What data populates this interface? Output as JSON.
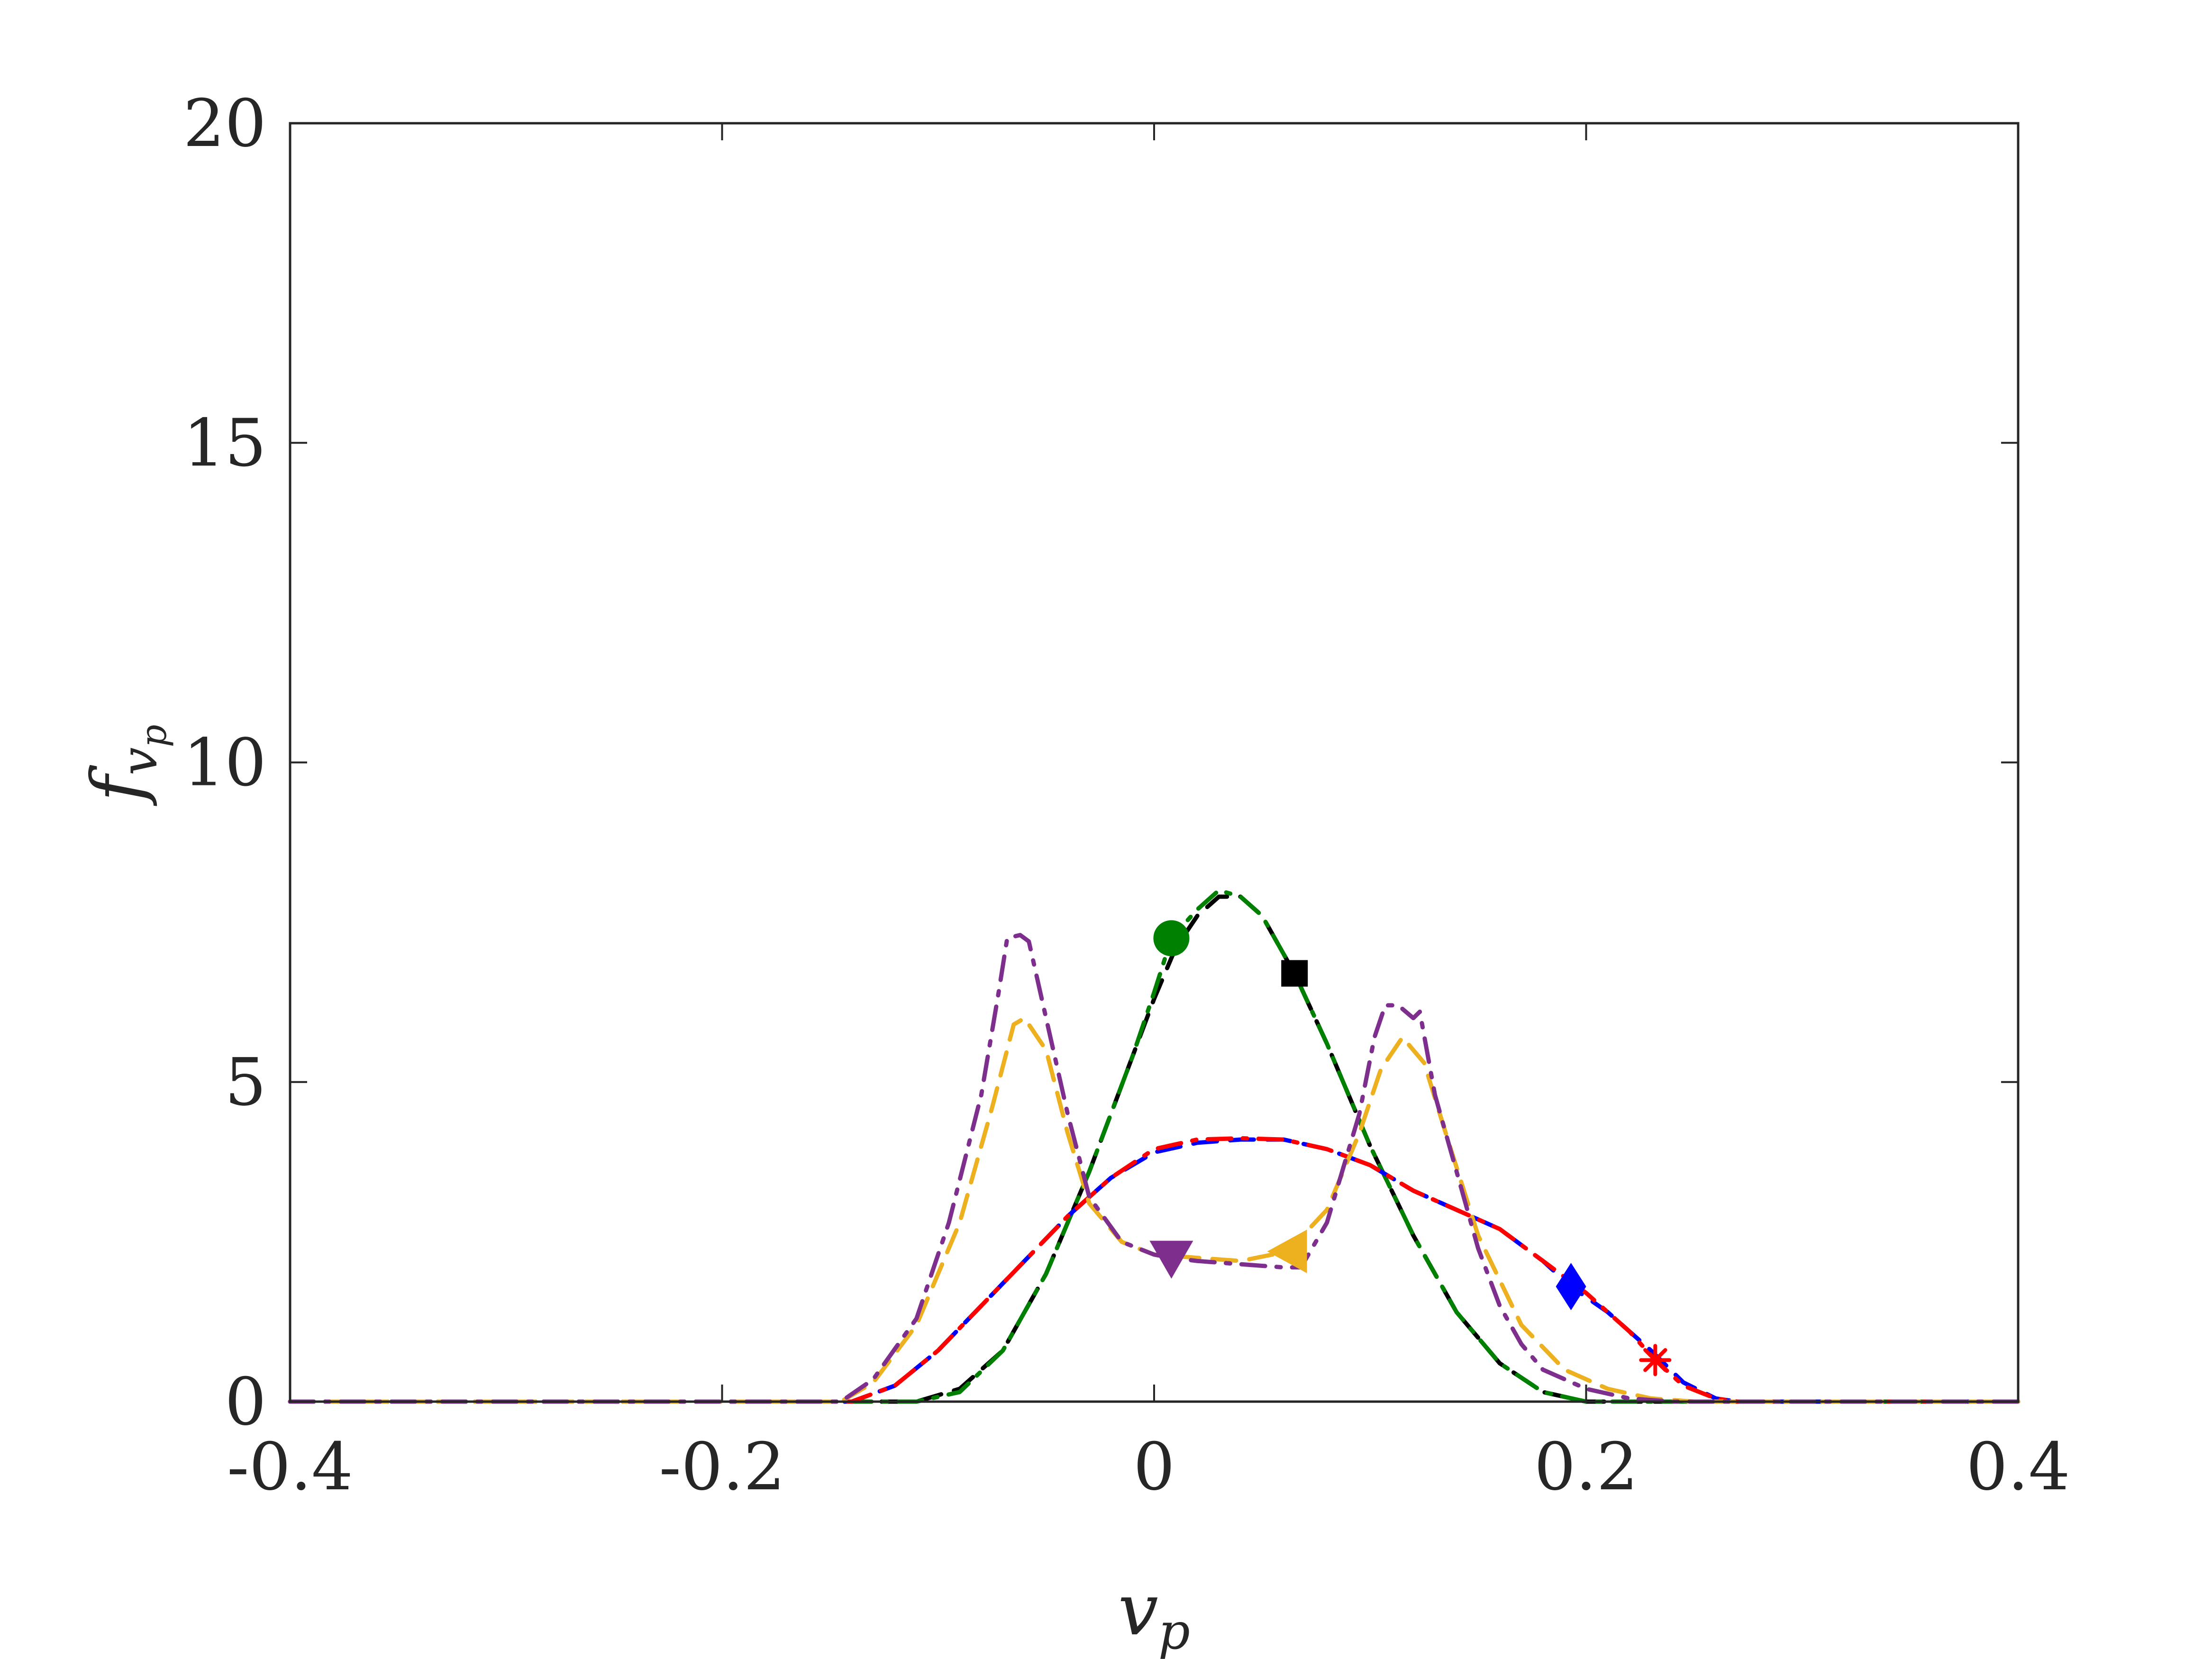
{
  "chart_data": {
    "type": "line",
    "title": "",
    "xlabel": "v",
    "xlabel_sub": "p",
    "ylabel": "f",
    "ylabel_sub": "v",
    "ylabel_subsub": "p",
    "xlim": [
      -0.4,
      0.4
    ],
    "ylim": [
      0,
      20
    ],
    "x_ticks": [
      -0.4,
      -0.2,
      0,
      0.2,
      0.4
    ],
    "x_tick_labels": [
      "-0.4",
      "-0.2",
      "0",
      "0.2",
      "0.4"
    ],
    "y_ticks": [
      0,
      5,
      10,
      15,
      20
    ],
    "y_tick_labels": [
      "0",
      "5",
      "10",
      "15",
      "20"
    ],
    "grid": false,
    "legend": "none",
    "series": [
      {
        "color": "#000000",
        "dash": "dashed",
        "marker": "square",
        "marker_at": [
          0.065,
          6.7
        ],
        "points": [
          [
            -0.4,
            0
          ],
          [
            -0.11,
            0
          ],
          [
            -0.09,
            0.2
          ],
          [
            -0.07,
            0.8
          ],
          [
            -0.05,
            2.0
          ],
          [
            -0.03,
            3.6
          ],
          [
            -0.01,
            5.4
          ],
          [
            0.0,
            6.3
          ],
          [
            0.01,
            7.1
          ],
          [
            0.02,
            7.6
          ],
          [
            0.03,
            7.9
          ],
          [
            0.04,
            7.9
          ],
          [
            0.05,
            7.6
          ],
          [
            0.065,
            6.7
          ],
          [
            0.08,
            5.6
          ],
          [
            0.1,
            4.0
          ],
          [
            0.12,
            2.6
          ],
          [
            0.14,
            1.4
          ],
          [
            0.16,
            0.6
          ],
          [
            0.18,
            0.15
          ],
          [
            0.2,
            0
          ],
          [
            0.4,
            0
          ]
        ]
      },
      {
        "color": "#008000",
        "dash": "dashdot",
        "marker": "circle",
        "marker_at": [
          0.008,
          7.25
        ],
        "points": [
          [
            -0.4,
            0
          ],
          [
            -0.11,
            0
          ],
          [
            -0.09,
            0.15
          ],
          [
            -0.07,
            0.8
          ],
          [
            -0.05,
            2.0
          ],
          [
            -0.03,
            3.6
          ],
          [
            -0.01,
            5.4
          ],
          [
            0.0,
            6.4
          ],
          [
            0.008,
            7.25
          ],
          [
            0.02,
            7.7
          ],
          [
            0.03,
            8.0
          ],
          [
            0.04,
            7.9
          ],
          [
            0.05,
            7.6
          ],
          [
            0.065,
            6.7
          ],
          [
            0.08,
            5.6
          ],
          [
            0.1,
            4.0
          ],
          [
            0.12,
            2.6
          ],
          [
            0.14,
            1.4
          ],
          [
            0.16,
            0.6
          ],
          [
            0.18,
            0.15
          ],
          [
            0.2,
            0
          ],
          [
            0.4,
            0
          ]
        ]
      },
      {
        "color": "#0000ff",
        "dash": "dashed",
        "marker": "diamond",
        "marker_at": [
          0.193,
          1.8
        ],
        "points": [
          [
            -0.4,
            0
          ],
          [
            -0.14,
            0
          ],
          [
            -0.12,
            0.25
          ],
          [
            -0.1,
            0.8
          ],
          [
            -0.08,
            1.5
          ],
          [
            -0.06,
            2.2
          ],
          [
            -0.04,
            2.9
          ],
          [
            -0.02,
            3.5
          ],
          [
            0.0,
            3.9
          ],
          [
            0.02,
            4.05
          ],
          [
            0.04,
            4.1
          ],
          [
            0.06,
            4.1
          ],
          [
            0.08,
            3.95
          ],
          [
            0.1,
            3.7
          ],
          [
            0.12,
            3.3
          ],
          [
            0.14,
            3.0
          ],
          [
            0.16,
            2.7
          ],
          [
            0.18,
            2.2
          ],
          [
            0.193,
            1.8
          ],
          [
            0.21,
            1.4
          ],
          [
            0.23,
            0.8
          ],
          [
            0.245,
            0.3
          ],
          [
            0.26,
            0.05
          ],
          [
            0.27,
            0
          ],
          [
            0.4,
            0
          ]
        ]
      },
      {
        "color": "#ff0000",
        "dash": "dashdot",
        "marker": "asterisk",
        "marker_at": [
          0.232,
          0.65
        ],
        "points": [
          [
            -0.4,
            0
          ],
          [
            -0.14,
            0
          ],
          [
            -0.12,
            0.25
          ],
          [
            -0.1,
            0.8
          ],
          [
            -0.08,
            1.5
          ],
          [
            -0.06,
            2.2
          ],
          [
            -0.04,
            2.9
          ],
          [
            -0.02,
            3.5
          ],
          [
            0.0,
            3.95
          ],
          [
            0.02,
            4.1
          ],
          [
            0.04,
            4.12
          ],
          [
            0.06,
            4.1
          ],
          [
            0.08,
            3.95
          ],
          [
            0.1,
            3.7
          ],
          [
            0.12,
            3.3
          ],
          [
            0.14,
            3.0
          ],
          [
            0.16,
            2.7
          ],
          [
            0.18,
            2.2
          ],
          [
            0.2,
            1.7
          ],
          [
            0.22,
            1.1
          ],
          [
            0.232,
            0.65
          ],
          [
            0.245,
            0.25
          ],
          [
            0.26,
            0.05
          ],
          [
            0.27,
            0
          ],
          [
            0.4,
            0
          ]
        ]
      },
      {
        "color": "#edb120",
        "dash": "dashed",
        "marker": "triangle-left",
        "marker_at": [
          0.062,
          2.35
        ],
        "points": [
          [
            -0.4,
            0
          ],
          [
            -0.145,
            0
          ],
          [
            -0.13,
            0.3
          ],
          [
            -0.11,
            1.2
          ],
          [
            -0.09,
            2.8
          ],
          [
            -0.075,
            4.6
          ],
          [
            -0.065,
            5.9
          ],
          [
            -0.06,
            6.0
          ],
          [
            -0.05,
            5.5
          ],
          [
            -0.04,
            4.2
          ],
          [
            -0.03,
            3.1
          ],
          [
            -0.015,
            2.5
          ],
          [
            0.0,
            2.3
          ],
          [
            0.02,
            2.25
          ],
          [
            0.04,
            2.2
          ],
          [
            0.062,
            2.35
          ],
          [
            0.08,
            3.0
          ],
          [
            0.095,
            4.2
          ],
          [
            0.105,
            5.2
          ],
          [
            0.115,
            5.7
          ],
          [
            0.125,
            5.3
          ],
          [
            0.135,
            4.2
          ],
          [
            0.15,
            2.6
          ],
          [
            0.17,
            1.2
          ],
          [
            0.19,
            0.5
          ],
          [
            0.21,
            0.2
          ],
          [
            0.23,
            0.05
          ],
          [
            0.25,
            0
          ],
          [
            0.4,
            0
          ]
        ]
      },
      {
        "color": "#7e2f8e",
        "dash": "dashdot",
        "marker": "triangle-down",
        "marker_at": [
          0.008,
          2.25
        ],
        "points": [
          [
            -0.4,
            0
          ],
          [
            -0.145,
            0
          ],
          [
            -0.13,
            0.35
          ],
          [
            -0.11,
            1.3
          ],
          [
            -0.095,
            2.8
          ],
          [
            -0.08,
            4.8
          ],
          [
            -0.072,
            6.4
          ],
          [
            -0.068,
            7.25
          ],
          [
            -0.062,
            7.3
          ],
          [
            -0.058,
            7.2
          ],
          [
            -0.05,
            6.0
          ],
          [
            -0.04,
            4.5
          ],
          [
            -0.03,
            3.2
          ],
          [
            -0.015,
            2.5
          ],
          [
            0.0,
            2.3
          ],
          [
            0.008,
            2.25
          ],
          [
            0.02,
            2.2
          ],
          [
            0.04,
            2.15
          ],
          [
            0.06,
            2.1
          ],
          [
            0.068,
            2.1
          ],
          [
            0.08,
            2.8
          ],
          [
            0.095,
            4.5
          ],
          [
            0.102,
            5.7
          ],
          [
            0.107,
            6.2
          ],
          [
            0.113,
            6.2
          ],
          [
            0.12,
            6.0
          ],
          [
            0.123,
            6.1
          ],
          [
            0.13,
            4.8
          ],
          [
            0.14,
            3.6
          ],
          [
            0.15,
            2.4
          ],
          [
            0.16,
            1.5
          ],
          [
            0.17,
            0.9
          ],
          [
            0.18,
            0.5
          ],
          [
            0.2,
            0.2
          ],
          [
            0.22,
            0.05
          ],
          [
            0.24,
            0
          ],
          [
            0.4,
            0
          ]
        ]
      }
    ]
  }
}
